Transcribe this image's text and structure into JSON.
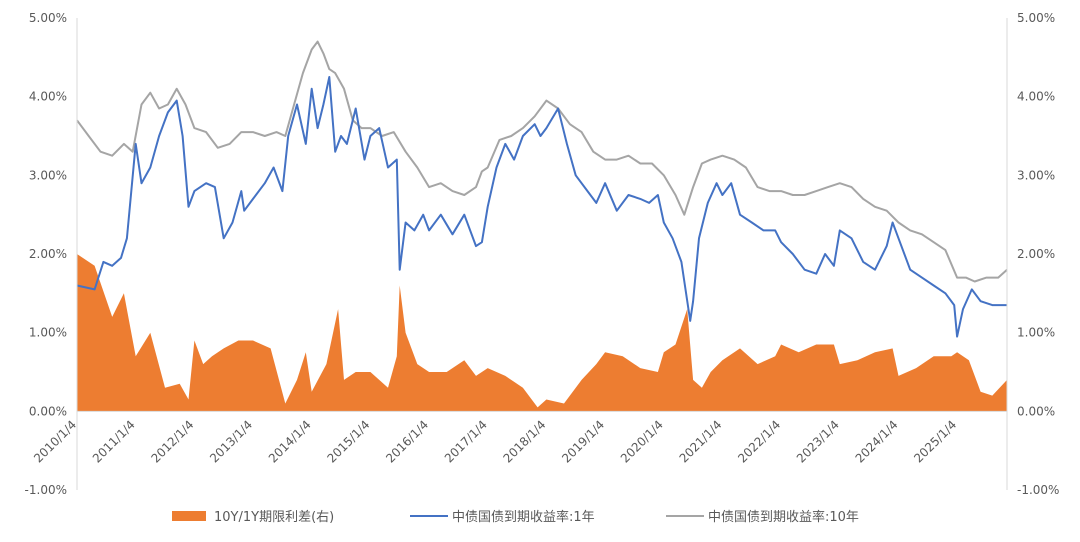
{
  "chart_data": {
    "type": "line",
    "title": "",
    "xlabel": "",
    "ylabel": "",
    "ylim_left": [
      -1,
      5
    ],
    "ylim_right": [
      -1,
      5
    ],
    "y_ticks_left": [
      "5.00%",
      "4.00%",
      "3.00%",
      "2.00%",
      "1.00%",
      "0.00%",
      "-1.00%"
    ],
    "y_ticks_right": [
      "5.00%",
      "4.00%",
      "3.00%",
      "2.00%",
      "1.00%",
      "0.00%",
      "-1.00%"
    ],
    "y_tick_values": [
      5,
      4,
      3,
      2,
      1,
      0,
      -1
    ],
    "x_ticks": [
      "2010/1/4",
      "2011/1/4",
      "2012/1/4",
      "2013/1/4",
      "2014/1/4",
      "2015/1/4",
      "2016/1/4",
      "2017/1/4",
      "2018/1/4",
      "2019/1/4",
      "2020/1/4",
      "2021/1/4",
      "2022/1/4",
      "2023/1/4",
      "2024/1/4",
      "2025/1/4"
    ],
    "x_range": [
      2010.0,
      2025.85
    ],
    "legend_position": "bottom",
    "series": [
      {
        "name": "10Y/1Y期限利差(右)",
        "kind": "area",
        "axis": "right",
        "color": "#ED7D31",
        "x": [
          2010.0,
          2010.3,
          2010.6,
          2010.8,
          2011.0,
          2011.25,
          2011.5,
          2011.75,
          2011.9,
          2012.0,
          2012.15,
          2012.3,
          2012.5,
          2012.75,
          2013.0,
          2013.3,
          2013.55,
          2013.75,
          2013.9,
          2014.0,
          2014.25,
          2014.45,
          2014.55,
          2014.75,
          2015.0,
          2015.3,
          2015.45,
          2015.5,
          2015.6,
          2015.8,
          2016.0,
          2016.3,
          2016.6,
          2016.8,
          2017.0,
          2017.3,
          2017.6,
          2017.85,
          2018.0,
          2018.3,
          2018.6,
          2018.85,
          2019.0,
          2019.3,
          2019.6,
          2019.9,
          2020.0,
          2020.2,
          2020.4,
          2020.5,
          2020.65,
          2020.8,
          2021.0,
          2021.3,
          2021.6,
          2021.9,
          2022.0,
          2022.3,
          2022.6,
          2022.9,
          2023.0,
          2023.3,
          2023.6,
          2023.9,
          2024.0,
          2024.3,
          2024.6,
          2024.9,
          2025.0,
          2025.2,
          2025.4,
          2025.6,
          2025.85
        ],
        "values": [
          2.0,
          1.85,
          1.2,
          1.5,
          0.7,
          1.0,
          0.3,
          0.35,
          0.15,
          0.9,
          0.6,
          0.7,
          0.8,
          0.9,
          0.9,
          0.8,
          0.1,
          0.4,
          0.75,
          0.25,
          0.6,
          1.3,
          0.4,
          0.5,
          0.5,
          0.3,
          0.7,
          1.6,
          1.0,
          0.6,
          0.5,
          0.5,
          0.65,
          0.45,
          0.55,
          0.45,
          0.3,
          0.05,
          0.15,
          0.1,
          0.4,
          0.6,
          0.75,
          0.7,
          0.55,
          0.5,
          0.75,
          0.85,
          1.3,
          0.4,
          0.3,
          0.5,
          0.65,
          0.8,
          0.6,
          0.7,
          0.85,
          0.75,
          0.85,
          0.85,
          0.6,
          0.65,
          0.75,
          0.8,
          0.45,
          0.55,
          0.7,
          0.7,
          0.75,
          0.65,
          0.25,
          0.2,
          0.4
        ]
      },
      {
        "name": "中债国债到期收益率:1年",
        "kind": "line",
        "axis": "left",
        "color": "#4472C4",
        "x": [
          2010.0,
          2010.3,
          2010.45,
          2010.6,
          2010.75,
          2010.85,
          2011.0,
          2011.1,
          2011.25,
          2011.4,
          2011.55,
          2011.7,
          2011.8,
          2011.9,
          2012.0,
          2012.2,
          2012.35,
          2012.5,
          2012.65,
          2012.8,
          2012.85,
          2013.0,
          2013.2,
          2013.35,
          2013.5,
          2013.6,
          2013.75,
          2013.9,
          2014.0,
          2014.1,
          2014.2,
          2014.3,
          2014.4,
          2014.5,
          2014.6,
          2014.75,
          2014.9,
          2015.0,
          2015.15,
          2015.3,
          2015.45,
          2015.5,
          2015.6,
          2015.75,
          2015.9,
          2016.0,
          2016.2,
          2016.4,
          2016.6,
          2016.8,
          2016.9,
          2017.0,
          2017.15,
          2017.3,
          2017.45,
          2017.6,
          2017.8,
          2017.9,
          2018.0,
          2018.2,
          2018.35,
          2018.5,
          2018.7,
          2018.85,
          2019.0,
          2019.2,
          2019.4,
          2019.6,
          2019.75,
          2019.9,
          2020.0,
          2020.15,
          2020.3,
          2020.45,
          2020.5,
          2020.6,
          2020.75,
          2020.9,
          2021.0,
          2021.15,
          2021.3,
          2021.5,
          2021.7,
          2021.9,
          2022.0,
          2022.2,
          2022.4,
          2022.6,
          2022.75,
          2022.9,
          2023.0,
          2023.2,
          2023.4,
          2023.6,
          2023.8,
          2023.9,
          2024.0,
          2024.2,
          2024.4,
          2024.6,
          2024.8,
          2024.95,
          2025.0,
          2025.1,
          2025.25,
          2025.4,
          2025.6,
          2025.85
        ],
        "values": [
          1.6,
          1.55,
          1.9,
          1.85,
          1.95,
          2.2,
          3.4,
          2.9,
          3.1,
          3.5,
          3.8,
          3.95,
          3.5,
          2.6,
          2.8,
          2.9,
          2.85,
          2.2,
          2.4,
          2.8,
          2.55,
          2.7,
          2.9,
          3.1,
          2.8,
          3.5,
          3.9,
          3.4,
          4.1,
          3.6,
          3.9,
          4.25,
          3.3,
          3.5,
          3.4,
          3.85,
          3.2,
          3.5,
          3.6,
          3.1,
          3.2,
          1.8,
          2.4,
          2.3,
          2.5,
          2.3,
          2.5,
          2.25,
          2.5,
          2.1,
          2.15,
          2.6,
          3.1,
          3.4,
          3.2,
          3.5,
          3.65,
          3.5,
          3.6,
          3.85,
          3.4,
          3.0,
          2.8,
          2.65,
          2.9,
          2.55,
          2.75,
          2.7,
          2.65,
          2.75,
          2.4,
          2.2,
          1.9,
          1.15,
          1.4,
          2.2,
          2.65,
          2.9,
          2.75,
          2.9,
          2.5,
          2.4,
          2.3,
          2.3,
          2.15,
          2.0,
          1.8,
          1.75,
          2.0,
          1.85,
          2.3,
          2.2,
          1.9,
          1.8,
          2.1,
          2.4,
          2.2,
          1.8,
          1.7,
          1.6,
          1.5,
          1.35,
          0.95,
          1.3,
          1.55,
          1.4,
          1.35,
          1.35
        ]
      },
      {
        "name": "中债国债到期收益率:10年",
        "kind": "line",
        "axis": "left",
        "color": "#A5A5A5",
        "x": [
          2010.0,
          2010.2,
          2010.4,
          2010.6,
          2010.8,
          2010.95,
          2011.1,
          2011.25,
          2011.4,
          2011.55,
          2011.7,
          2011.85,
          2012.0,
          2012.2,
          2012.4,
          2012.6,
          2012.8,
          2013.0,
          2013.2,
          2013.4,
          2013.55,
          2013.7,
          2013.85,
          2014.0,
          2014.1,
          2014.2,
          2014.3,
          2014.4,
          2014.55,
          2014.7,
          2014.85,
          2015.0,
          2015.2,
          2015.4,
          2015.6,
          2015.8,
          2016.0,
          2016.2,
          2016.4,
          2016.6,
          2016.8,
          2016.9,
          2017.0,
          2017.2,
          2017.4,
          2017.6,
          2017.8,
          2018.0,
          2018.2,
          2018.4,
          2018.6,
          2018.8,
          2019.0,
          2019.2,
          2019.4,
          2019.6,
          2019.8,
          2020.0,
          2020.2,
          2020.35,
          2020.5,
          2020.65,
          2020.8,
          2021.0,
          2021.2,
          2021.4,
          2021.6,
          2021.8,
          2022.0,
          2022.2,
          2022.4,
          2022.6,
          2022.8,
          2023.0,
          2023.2,
          2023.4,
          2023.6,
          2023.8,
          2024.0,
          2024.2,
          2024.4,
          2024.6,
          2024.8,
          2025.0,
          2025.15,
          2025.3,
          2025.5,
          2025.7,
          2025.85
        ],
        "values": [
          3.7,
          3.5,
          3.3,
          3.25,
          3.4,
          3.3,
          3.9,
          4.05,
          3.85,
          3.9,
          4.1,
          3.9,
          3.6,
          3.55,
          3.35,
          3.4,
          3.55,
          3.55,
          3.5,
          3.55,
          3.5,
          3.9,
          4.3,
          4.6,
          4.7,
          4.55,
          4.35,
          4.3,
          4.1,
          3.7,
          3.6,
          3.6,
          3.5,
          3.55,
          3.3,
          3.1,
          2.85,
          2.9,
          2.8,
          2.75,
          2.85,
          3.05,
          3.1,
          3.45,
          3.5,
          3.6,
          3.75,
          3.95,
          3.85,
          3.65,
          3.55,
          3.3,
          3.2,
          3.2,
          3.25,
          3.15,
          3.15,
          3.0,
          2.75,
          2.5,
          2.85,
          3.15,
          3.2,
          3.25,
          3.2,
          3.1,
          2.85,
          2.8,
          2.8,
          2.75,
          2.75,
          2.8,
          2.85,
          2.9,
          2.85,
          2.7,
          2.6,
          2.55,
          2.4,
          2.3,
          2.25,
          2.15,
          2.05,
          1.7,
          1.7,
          1.65,
          1.7,
          1.7,
          1.8
        ]
      }
    ]
  }
}
